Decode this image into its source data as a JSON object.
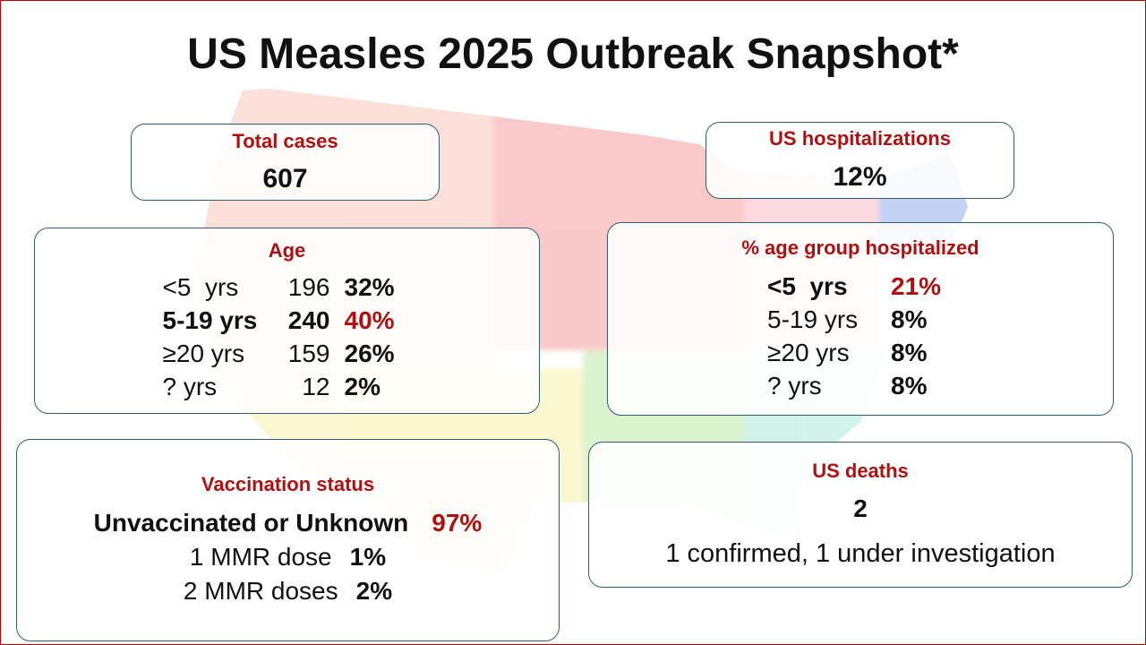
{
  "title": "US Measles 2025 Outbreak Snapshot*",
  "total_cases": {
    "label": "Total cases",
    "value": "607"
  },
  "hospitalizations": {
    "label": "US hospitalizations",
    "value": "12%"
  },
  "age": {
    "label": "Age",
    "rows": [
      [
        "<5  yrs",
        "196",
        "32%"
      ],
      [
        "5-19 yrs",
        "240",
        "40%"
      ],
      [
        "≥20 yrs",
        "159",
        "26%"
      ],
      [
        "? yrs",
        "12",
        "2%"
      ]
    ]
  },
  "age_hospitalized": {
    "label": "% age group hospitalized",
    "rows": [
      [
        "<5  yrs",
        "21%"
      ],
      [
        "5-19 yrs",
        "8%"
      ],
      [
        "≥20 yrs",
        "8%"
      ],
      [
        "? yrs",
        "8%"
      ]
    ]
  },
  "vaccination": {
    "label": "Vaccination status",
    "rows": [
      [
        "Unvaccinated or Unknown",
        "97%"
      ],
      [
        "1 MMR dose",
        "1%"
      ],
      [
        "2 MMR doses",
        "2%"
      ]
    ]
  },
  "deaths": {
    "label": "US deaths",
    "value": "2",
    "note": "1 confirmed, 1 under investigation"
  }
}
